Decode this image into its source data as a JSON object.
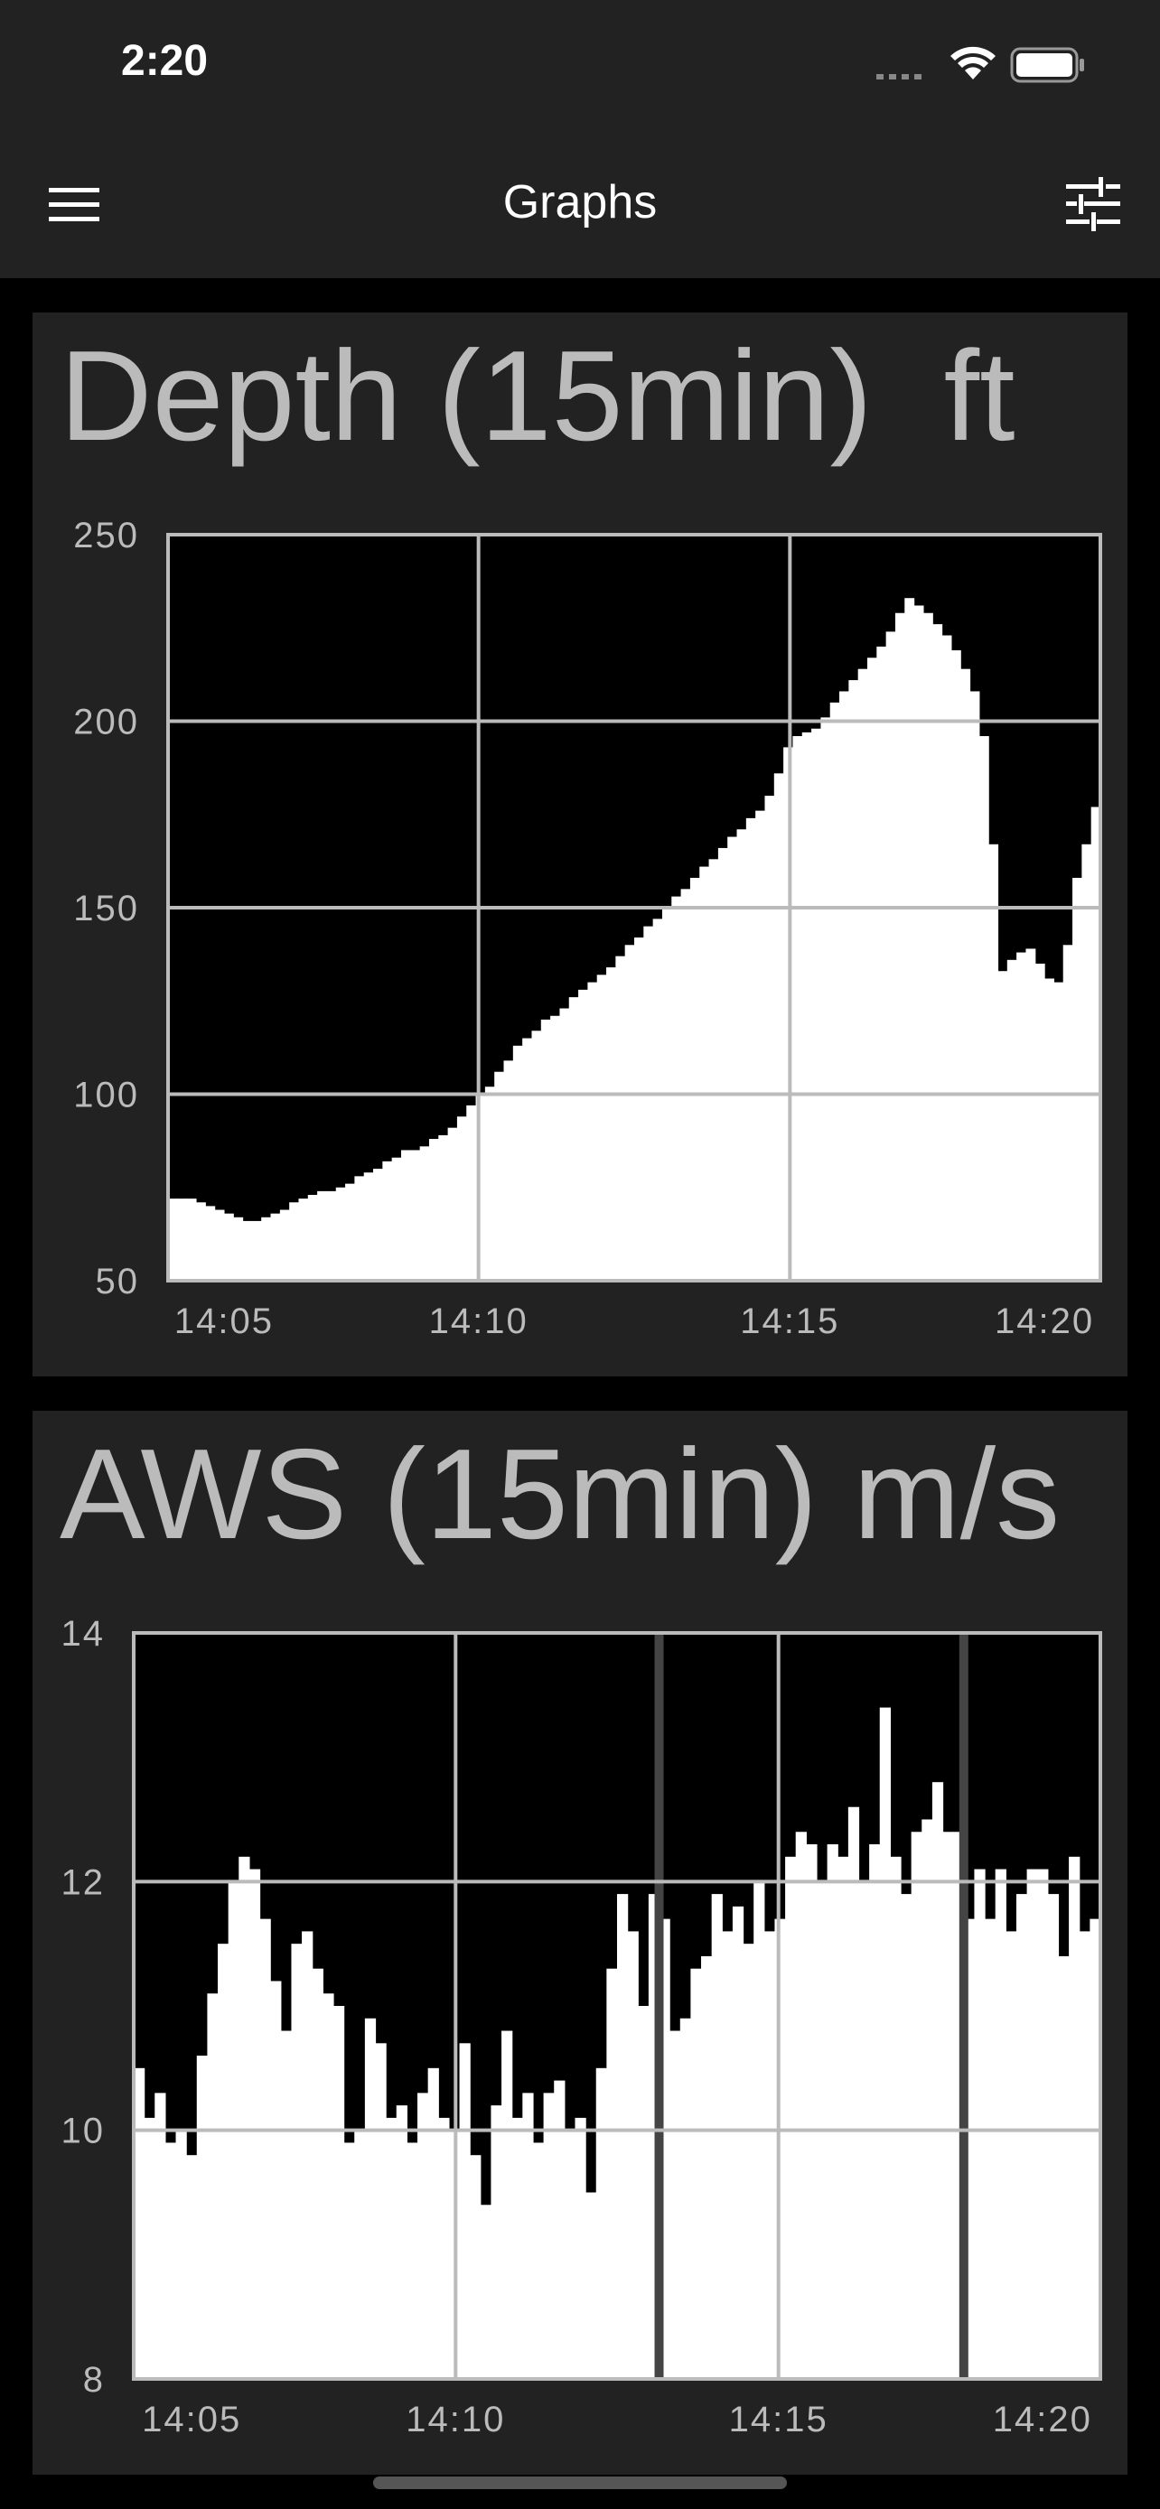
{
  "status_bar": {
    "time": "2:20"
  },
  "nav": {
    "title": "Graphs",
    "menu_icon": "hamburger-menu-icon",
    "filter_icon": "sliders-icon"
  },
  "colors": {
    "background": "#000000",
    "card": "#222222",
    "fill": "#ffffff",
    "title_text": "#bbbbbb",
    "grid": "#bbbbbb",
    "gap_marker": "#444444"
  },
  "chart_data": [
    {
      "type": "area",
      "title": "Depth (15min)",
      "unit": "ft",
      "ylim": [
        50,
        250
      ],
      "yticks": [
        "250",
        "200",
        "150",
        "100",
        "50"
      ],
      "xticks": [
        "14:05",
        "14:10",
        "14:15",
        "14:20"
      ],
      "grid": true,
      "series": [
        {
          "values": [
            72,
            72,
            72,
            71,
            70,
            69,
            68,
            67,
            66,
            66,
            67,
            68,
            69,
            71,
            72,
            73,
            74,
            74,
            75,
            76,
            78,
            79,
            80,
            82,
            83,
            85,
            85,
            86,
            88,
            89,
            91,
            94,
            97,
            100,
            102,
            106,
            109,
            113,
            115,
            117,
            120,
            121,
            123,
            126,
            128,
            130,
            132,
            134,
            137,
            140,
            142,
            145,
            147,
            150,
            153,
            155,
            158,
            161,
            163,
            166,
            169,
            171,
            174,
            176,
            180,
            186,
            193,
            196,
            197,
            198,
            201,
            205,
            208,
            211,
            214,
            217,
            220,
            224,
            229,
            233,
            231,
            229,
            226,
            223,
            219,
            214,
            208,
            196,
            167,
            133,
            136,
            138,
            139,
            135,
            131,
            130,
            140,
            158,
            167,
            177
          ]
        }
      ]
    },
    {
      "type": "bar",
      "title": "AWS (15min)",
      "unit": "m/s",
      "ylim": [
        8,
        14
      ],
      "yticks": [
        "14",
        "12",
        "10",
        "8"
      ],
      "xticks": [
        "14:05",
        "14:10",
        "14:15",
        "14:20"
      ],
      "grid": true,
      "gaps_after_index": [
        49,
        78
      ],
      "series": [
        {
          "values": [
            10.5,
            10.1,
            10.3,
            9.9,
            10.0,
            9.8,
            10.6,
            11.1,
            11.5,
            12.0,
            12.2,
            12.1,
            11.7,
            11.2,
            10.8,
            11.5,
            11.6,
            11.3,
            11.1,
            11.0,
            9.9,
            10.0,
            10.9,
            10.7,
            10.1,
            10.2,
            9.9,
            10.3,
            10.5,
            10.1,
            10.0,
            10.7,
            9.8,
            9.4,
            10.2,
            10.8,
            10.1,
            10.3,
            9.9,
            10.3,
            10.4,
            10.0,
            10.1,
            9.5,
            10.5,
            11.3,
            11.9,
            11.6,
            11.0,
            11.9,
            11.7,
            10.8,
            10.9,
            11.3,
            11.4,
            11.9,
            11.6,
            11.8,
            11.5,
            12.0,
            11.6,
            11.7,
            12.2,
            12.4,
            12.3,
            12.0,
            12.3,
            12.2,
            12.6,
            12.0,
            12.3,
            13.4,
            12.2,
            11.9,
            12.4,
            12.5,
            12.8,
            12.4,
            12.4,
            11.7,
            12.1,
            11.7,
            12.1,
            11.6,
            11.9,
            12.1,
            12.1,
            11.9,
            11.4,
            12.2,
            11.6,
            11.7
          ]
        }
      ]
    }
  ]
}
